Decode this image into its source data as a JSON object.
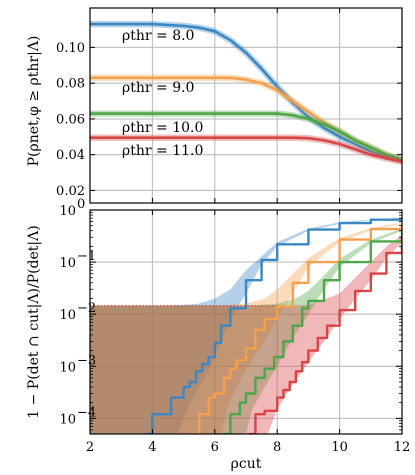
{
  "chart_data": [
    {
      "type": "line",
      "ylabel": "P(ρnet,φ ≥ ρthr|Λ)",
      "ylim": [
        0.013,
        0.122
      ],
      "xlim": [
        2,
        12
      ],
      "grid": true,
      "yticks": [
        "0.02",
        "0.04",
        "0.06",
        "0.08",
        "0.10"
      ],
      "ytick_values": [
        0.02,
        0.04,
        0.06,
        0.08,
        0.1
      ],
      "series": [
        {
          "name": "ρthr = 8.0",
          "color": "#3a87c4",
          "x": [
            2,
            4,
            5,
            5.5,
            6,
            6.5,
            7,
            7.5,
            8,
            8.5,
            9,
            9.5,
            10,
            10.5,
            11,
            11.5,
            12
          ],
          "y": [
            0.113,
            0.113,
            0.112,
            0.111,
            0.109,
            0.104,
            0.097,
            0.088,
            0.078,
            0.069,
            0.061,
            0.055,
            0.05,
            0.046,
            0.042,
            0.039,
            0.037
          ]
        },
        {
          "name": "ρthr = 9.0",
          "color": "#f5a04c",
          "x": [
            2,
            6,
            6.5,
            7,
            7.5,
            8,
            8.5,
            9,
            9.5,
            10,
            10.5,
            11,
            11.5,
            12
          ],
          "y": [
            0.083,
            0.083,
            0.083,
            0.082,
            0.08,
            0.076,
            0.07,
            0.064,
            0.058,
            0.053,
            0.048,
            0.044,
            0.04,
            0.037
          ]
        },
        {
          "name": "ρthr = 10.0",
          "color": "#4ea64a",
          "x": [
            2,
            7,
            7.5,
            8,
            8.5,
            9,
            9.5,
            10,
            10.5,
            11,
            11.5,
            12
          ],
          "y": [
            0.063,
            0.063,
            0.063,
            0.063,
            0.062,
            0.06,
            0.057,
            0.053,
            0.048,
            0.044,
            0.04,
            0.037
          ]
        },
        {
          "name": "ρthr = 11.0",
          "color": "#d84545",
          "x": [
            2,
            8,
            8.5,
            9,
            9.5,
            10,
            10.5,
            11,
            11.5,
            12
          ],
          "y": [
            0.0495,
            0.0495,
            0.0495,
            0.0492,
            0.048,
            0.046,
            0.043,
            0.04,
            0.038,
            0.036
          ]
        }
      ]
    },
    {
      "type": "line",
      "xlabel": "ρcut",
      "ylabel": "1 − P(det ∩ cut|Λ)/P(det|Λ)",
      "ylim_log10": [
        -4.3,
        0.0
      ],
      "xlim": [
        2,
        12
      ],
      "log_y": true,
      "grid": true,
      "xticks": [
        "2",
        "4",
        "6",
        "8",
        "10",
        "12"
      ],
      "xtick_values": [
        2,
        4,
        6,
        8,
        10,
        12
      ],
      "yticks": [
        "10^0",
        "10^-1",
        "10^-2",
        "10^-3",
        "10^-4"
      ],
      "ytick_exponents": [
        0,
        -1,
        -2,
        -3,
        -4
      ],
      "series": [
        {
          "name": "ρthr = 8.0",
          "color": "#3a87c4",
          "x": [
            3.8,
            4.0,
            4.3,
            4.6,
            4.8,
            5.0,
            5.2,
            5.4,
            5.6,
            5.8,
            6.0,
            6.2,
            6.5,
            7.0,
            7.5,
            8.0,
            9.0,
            10.0,
            11.0,
            12.0
          ],
          "y": [
            5e-05,
            0.00012,
            0.00012,
            0.00025,
            0.00025,
            0.0004,
            0.0005,
            0.0008,
            0.0011,
            0.0015,
            0.0028,
            0.006,
            0.013,
            0.045,
            0.11,
            0.22,
            0.42,
            0.56,
            0.65,
            0.7
          ]
        },
        {
          "name": "ρthr = 9.0",
          "color": "#f5a04c",
          "x": [
            5.3,
            5.5,
            5.8,
            6.0,
            6.3,
            6.5,
            6.7,
            7.0,
            7.3,
            7.6,
            8.0,
            8.5,
            9.0,
            10.0,
            11.0,
            12.0
          ],
          "y": [
            5e-05,
            0.00012,
            0.00025,
            0.0003,
            0.0006,
            0.0009,
            0.0013,
            0.0022,
            0.005,
            0.008,
            0.014,
            0.04,
            0.1,
            0.27,
            0.43,
            0.55
          ]
        },
        {
          "name": "ρthr = 10.0",
          "color": "#4ea64a",
          "x": [
            6.3,
            6.5,
            6.8,
            7.0,
            7.3,
            7.6,
            7.9,
            8.2,
            8.5,
            8.8,
            9.0,
            9.5,
            10.0,
            11.0,
            12.0
          ],
          "y": [
            5e-05,
            0.00012,
            0.0002,
            0.0003,
            0.0006,
            0.0009,
            0.0015,
            0.003,
            0.006,
            0.013,
            0.018,
            0.045,
            0.1,
            0.25,
            0.42
          ]
        },
        {
          "name": "ρthr = 11.0",
          "color": "#d84545",
          "x": [
            7.1,
            7.3,
            7.6,
            8.0,
            8.2,
            8.4,
            8.6,
            8.8,
            9.0,
            9.3,
            9.6,
            10.0,
            10.5,
            11.0,
            11.5,
            12.0
          ],
          "y": [
            5e-05,
            0.00012,
            0.00014,
            0.00025,
            0.00035,
            0.0005,
            0.0008,
            0.0012,
            0.002,
            0.0035,
            0.006,
            0.012,
            0.028,
            0.06,
            0.15,
            0.28
          ]
        }
      ],
      "bands": [
        {
          "color": "#3a87c4",
          "plateau": 0.0145,
          "x0": 2,
          "drop": [
            [
              6.0,
              0.014
            ],
            [
              6.3,
              0.01
            ],
            [
              6.6,
              0.004
            ],
            [
              6.8,
              0.0015
            ],
            [
              7.0,
              0.0004
            ],
            [
              7.1,
              5e-05
            ]
          ],
          "upper": [
            [
              4.5,
              0.0145
            ],
            [
              5.5,
              0.016
            ],
            [
              6.0,
              0.02
            ],
            [
              6.5,
              0.03
            ],
            [
              7.0,
              0.07
            ],
            [
              8.0,
              0.24
            ],
            [
              9.0,
              0.44
            ],
            [
              10.0,
              0.58
            ],
            [
              11.0,
              0.66
            ],
            [
              12.0,
              0.71
            ]
          ],
          "lower": [
            [
              12.0,
              0.69
            ],
            [
              11.0,
              0.64
            ],
            [
              10.0,
              0.54
            ],
            [
              9.0,
              0.4
            ],
            [
              8.0,
              0.2
            ],
            [
              7.5,
              0.09
            ],
            [
              7.0,
              0.025
            ],
            [
              6.5,
              0.008
            ],
            [
              6.0,
              0.0014
            ],
            [
              5.6,
              0.0005
            ],
            [
              5.2,
              0.0002
            ],
            [
              5.0,
              0.0001
            ],
            [
              4.8,
              5e-05
            ]
          ]
        },
        {
          "color": "#f5a04c",
          "plateau": 0.0145,
          "x0": 2,
          "drop": [
            [
              7.0,
              0.014
            ],
            [
              7.4,
              0.008
            ],
            [
              7.7,
              0.002
            ],
            [
              7.9,
              0.0005
            ],
            [
              8.0,
              5e-05
            ]
          ],
          "upper": [
            [
              6.0,
              0.0145
            ],
            [
              7.0,
              0.016
            ],
            [
              7.6,
              0.02
            ],
            [
              8.0,
              0.03
            ],
            [
              8.5,
              0.06
            ],
            [
              9.0,
              0.12
            ],
            [
              10.0,
              0.29
            ],
            [
              11.0,
              0.45
            ],
            [
              12.0,
              0.57
            ]
          ],
          "lower": [
            [
              12.0,
              0.53
            ],
            [
              11.0,
              0.41
            ],
            [
              10.0,
              0.24
            ],
            [
              9.0,
              0.08
            ],
            [
              8.5,
              0.025
            ],
            [
              8.0,
              0.008
            ],
            [
              7.5,
              0.0025
            ],
            [
              7.0,
              0.0009
            ],
            [
              6.7,
              0.0004
            ],
            [
              6.4,
              0.00015
            ],
            [
              6.2,
              5e-05
            ]
          ]
        },
        {
          "color": "#4ea64a",
          "plateau": 0.0145,
          "x0": 2,
          "drop": [
            [
              7.8,
              0.014
            ],
            [
              8.0,
              0.006
            ],
            [
              8.1,
              0.0015
            ],
            [
              8.2,
              0.0004
            ],
            [
              8.3,
              5e-05
            ]
          ],
          "upper": [
            [
              7.0,
              0.0145
            ],
            [
              8.0,
              0.016
            ],
            [
              8.6,
              0.02
            ],
            [
              9.0,
              0.028
            ],
            [
              9.5,
              0.055
            ],
            [
              10.0,
              0.115
            ],
            [
              11.0,
              0.27
            ],
            [
              12.0,
              0.44
            ]
          ],
          "lower": [
            [
              12.0,
              0.4
            ],
            [
              11.0,
              0.23
            ],
            [
              10.0,
              0.08
            ],
            [
              9.5,
              0.03
            ],
            [
              9.0,
              0.01
            ],
            [
              8.5,
              0.0035
            ],
            [
              8.0,
              0.001
            ],
            [
              7.6,
              0.0004
            ],
            [
              7.2,
              0.00015
            ],
            [
              7.0,
              5e-05
            ]
          ]
        },
        {
          "color": "#d84545",
          "plateau": 0.0145,
          "x0": 2,
          "drop": [
            [
              8.3,
              0.014
            ],
            [
              8.8,
              0.008
            ],
            [
              9.1,
              0.002
            ],
            [
              9.3,
              0.0004
            ],
            [
              9.4,
              5e-05
            ]
          ],
          "upper": [
            [
              8.0,
              0.0145
            ],
            [
              9.0,
              0.015
            ],
            [
              9.6,
              0.02
            ],
            [
              10.0,
              0.025
            ],
            [
              10.5,
              0.05
            ],
            [
              11.0,
              0.1
            ],
            [
              11.5,
              0.2
            ],
            [
              12.0,
              0.33
            ]
          ],
          "lower": [
            [
              12.0,
              0.24
            ],
            [
              11.5,
              0.12
            ],
            [
              11.0,
              0.045
            ],
            [
              10.5,
              0.02
            ],
            [
              10.0,
              0.008
            ],
            [
              9.5,
              0.003
            ],
            [
              9.0,
              0.0012
            ],
            [
              8.5,
              0.00045
            ],
            [
              8.0,
              0.00015
            ],
            [
              7.7,
              5e-05
            ]
          ]
        }
      ]
    }
  ]
}
